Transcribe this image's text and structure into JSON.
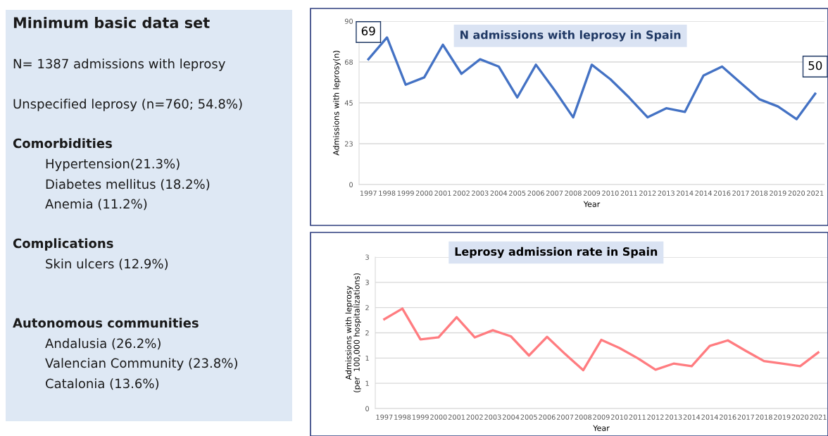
{
  "chart_data": [
    {
      "type": "other",
      "title": "Minimum basic data set",
      "annotations": [
        "N= 1387 admissions with leprosy",
        "Unspecified leprosy (n=760; 54.8%)",
        "Comorbidities",
        "Hypertension(21.3%)",
        "Diabetes mellitus (18.2%)",
        "Anemia (11.2%)",
        "Complications",
        "Skin ulcers (12.9%)",
        "Autonomous communities",
        "Andalusia (26.2%)",
        "Valencian Community (23.8%)",
        "Catalonia (13.6%)"
      ]
    },
    {
      "type": "line",
      "title": "N admissions with leprosy in Spain",
      "xlabel": "Year",
      "ylabel": "Admissions with leprosy(n)",
      "categories": [
        "1997",
        "1998",
        "1999",
        "2000",
        "2001",
        "2002",
        "2003",
        "2004",
        "2005",
        "2006",
        "2007",
        "2008",
        "2009",
        "2010",
        "2011",
        "2012",
        "2013",
        "2014",
        "2014",
        "2016",
        "2017",
        "2018",
        "2019",
        "2020",
        "2021"
      ],
      "series": [
        {
          "color": "#4472c4",
          "values": [
            69,
            81,
            55,
            59,
            77,
            61,
            69,
            65,
            48,
            66,
            52,
            37,
            66,
            58,
            48,
            37,
            42,
            40,
            60,
            65,
            56,
            47,
            43,
            36,
            50
          ]
        }
      ],
      "ylim": [
        0,
        90
      ],
      "yticks": [
        0,
        {
          "value": 22.5,
          "label": "23"
        },
        45,
        {
          "value": 67.5,
          "label": "68"
        },
        90
      ],
      "grid": "y",
      "annotations": [
        {
          "text": "69",
          "x": "1997",
          "y": 69
        },
        {
          "text": "50",
          "x": "2021",
          "y": 50
        }
      ]
    },
    {
      "type": "line",
      "title": "Leprosy admission rate in Spain",
      "xlabel": "Year",
      "ylabel": "Admissions with leprosy\n(per  100,000 hospitalizations)",
      "categories": [
        "1997",
        "1998",
        "1999",
        "2000",
        "2001",
        "2002",
        "2003",
        "2004",
        "2005",
        "2006",
        "2007",
        "2008",
        "2009",
        "2010",
        "2011",
        "2012",
        "2013",
        "2014",
        "2014",
        "2016",
        "2017",
        "2018",
        "2019",
        "2020",
        "2021"
      ],
      "series": [
        {
          "color": "#ff7c80",
          "values": [
            1.77,
            1.98,
            1.37,
            1.41,
            1.81,
            1.41,
            1.55,
            1.43,
            1.05,
            1.42,
            1.08,
            0.76,
            1.36,
            1.2,
            1.0,
            0.77,
            0.89,
            0.84,
            1.24,
            1.35,
            1.14,
            0.94,
            0.89,
            0.84,
            1.11
          ]
        }
      ],
      "ylim": [
        0,
        3
      ],
      "yticks": [
        0,
        {
          "value": 0.5,
          "label": "1"
        },
        1,
        {
          "value": 1.5,
          "label": "2"
        },
        2,
        {
          "value": 2.5,
          "label": "3"
        },
        3
      ],
      "grid": "y"
    }
  ]
}
